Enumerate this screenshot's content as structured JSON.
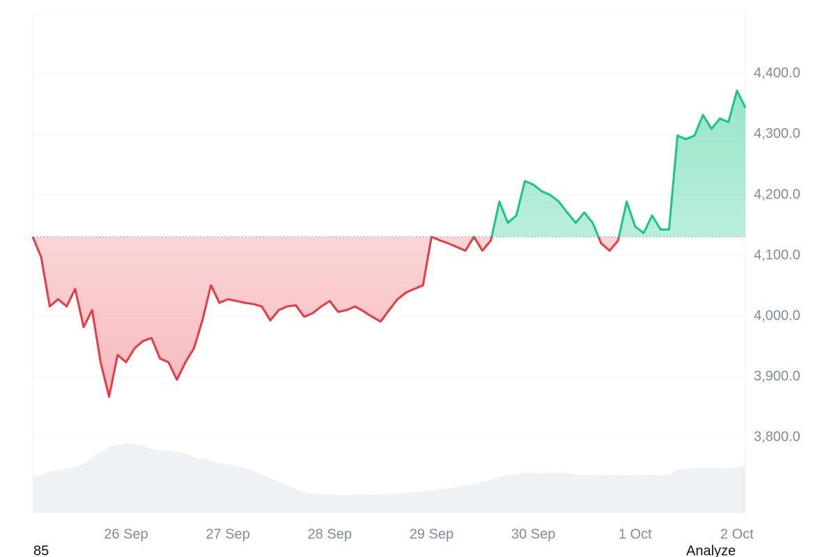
{
  "chart_data": {
    "type": "line",
    "baseline": 4131,
    "up_color": "#16c784",
    "down_color": "#ea3943",
    "volume_color": "#eff2f5",
    "values": [
      4131,
      4097,
      4016,
      4028,
      4016,
      4045,
      3982,
      4010,
      3924,
      3867,
      3936,
      3924,
      3947,
      3959,
      3964,
      3930,
      3924,
      3895,
      3924,
      3947,
      3993,
      4051,
      4022,
      4028,
      4025,
      4022,
      4020,
      4016,
      3993,
      4010,
      4016,
      4018,
      3999,
      4005,
      4016,
      4025,
      4007,
      4010,
      4016,
      4008,
      3999,
      3991,
      4010,
      4028,
      4039,
      4045,
      4051,
      4131,
      4125,
      4120,
      4114,
      4108,
      4131,
      4108,
      4125,
      4189,
      4154,
      4166,
      4223,
      4217,
      4206,
      4200,
      4189,
      4171,
      4154,
      4171,
      4154,
      4120,
      4108,
      4125,
      4189,
      4148,
      4137,
      4166,
      4143,
      4143,
      4298,
      4292,
      4298,
      4332,
      4309,
      4326,
      4320,
      4372,
      4344
    ],
    "volume": [
      50,
      55,
      60,
      62,
      64,
      66,
      70,
      80,
      88,
      95,
      98,
      100,
      100,
      97,
      92,
      90,
      90,
      88,
      85,
      80,
      78,
      75,
      72,
      70,
      68,
      65,
      60,
      55,
      50,
      45,
      40,
      35,
      30,
      28,
      27,
      27,
      26,
      26,
      27,
      27,
      26,
      27,
      28,
      28,
      29,
      30,
      31,
      32,
      35,
      35,
      38,
      40,
      42,
      45,
      48,
      52,
      55,
      56,
      58,
      58,
      57,
      58,
      58,
      57,
      56,
      55,
      55,
      54,
      55,
      55,
      54,
      54,
      55,
      55,
      54,
      55,
      62,
      64,
      64,
      65,
      65,
      64,
      65,
      66,
      70
    ],
    "xlim": [
      0,
      84
    ],
    "xticks": [
      {
        "value": 11,
        "label": "26 Sep"
      },
      {
        "value": 23,
        "label": "27 Sep"
      },
      {
        "value": 35,
        "label": "28 Sep"
      },
      {
        "value": 47,
        "label": "29 Sep"
      },
      {
        "value": 59,
        "label": "30 Sep"
      },
      {
        "value": 71,
        "label": "1 Oct"
      },
      {
        "value": 83,
        "label": "2 Oct"
      }
    ],
    "ylim": [
      3675,
      4501
    ],
    "yticks": [
      {
        "value": 3800,
        "label": "3,800.0"
      },
      {
        "value": 3900,
        "label": "3,900.0"
      },
      {
        "value": 4000,
        "label": "4,000.0"
      },
      {
        "value": 4100,
        "label": "4,100.0"
      },
      {
        "value": 4200,
        "label": "4,200.0"
      },
      {
        "value": 4300,
        "label": "4,300.0"
      },
      {
        "value": 4400,
        "label": "4,400.0"
      }
    ],
    "grid": true,
    "footer_left": "85",
    "footer_right": "Analyze"
  }
}
